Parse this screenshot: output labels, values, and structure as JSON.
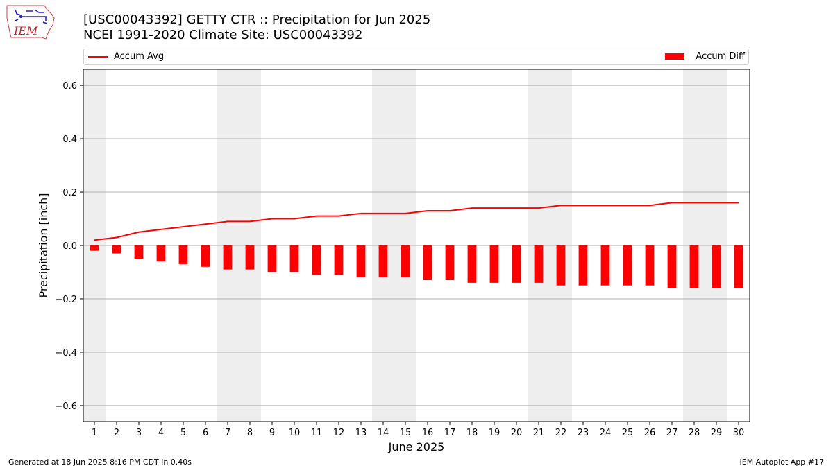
{
  "header": {
    "title_line1": "[USC00043392] GETTY CTR :: Precipitation for Jun 2025",
    "title_line2": "NCEI 1991-2020 Climate Site: USC00043392"
  },
  "logo": {
    "text": "IEM"
  },
  "footer": {
    "left": "Generated at 18 Jun 2025 8:16 PM CDT in 0.40s",
    "right": "IEM Autoplot App #17"
  },
  "legend": {
    "avg_label": "Accum Avg",
    "diff_label": "Accum Diff",
    "placement": "top, spanning full width"
  },
  "colors": {
    "series": "#ff0000",
    "weekend_shade": "#eeeeee",
    "grid": "#b0b0b0"
  },
  "chart_data": {
    "type": "bar",
    "xlabel": "June 2025",
    "ylabel": "Precipitation [inch]",
    "ylim": [
      -0.66,
      0.66
    ],
    "yticks": [
      -0.6,
      -0.4,
      -0.2,
      0.0,
      0.2,
      0.4,
      0.6
    ],
    "ytick_labels": [
      "−0.6",
      "−0.4",
      "−0.2",
      "0.0",
      "0.2",
      "0.4",
      "0.6"
    ],
    "xlim": [
      0.5,
      30.5
    ],
    "categories": [
      1,
      2,
      3,
      4,
      5,
      6,
      7,
      8,
      9,
      10,
      11,
      12,
      13,
      14,
      15,
      16,
      17,
      18,
      19,
      20,
      21,
      22,
      23,
      24,
      25,
      26,
      27,
      28,
      29,
      30
    ],
    "weekend_days": [
      1,
      7,
      8,
      14,
      15,
      21,
      22,
      28,
      29
    ],
    "grid": "horizontal",
    "series": [
      {
        "name": "Accum Avg",
        "type": "line",
        "values": [
          0.02,
          0.03,
          0.05,
          0.06,
          0.07,
          0.08,
          0.09,
          0.09,
          0.1,
          0.1,
          0.11,
          0.11,
          0.12,
          0.12,
          0.12,
          0.13,
          0.13,
          0.14,
          0.14,
          0.14,
          0.14,
          0.15,
          0.15,
          0.15,
          0.15,
          0.15,
          0.16,
          0.16,
          0.16,
          0.16
        ]
      },
      {
        "name": "Accum Diff",
        "type": "bar",
        "values": [
          -0.02,
          -0.03,
          -0.05,
          -0.06,
          -0.07,
          -0.08,
          -0.09,
          -0.09,
          -0.1,
          -0.1,
          -0.11,
          -0.11,
          -0.12,
          -0.12,
          -0.12,
          -0.13,
          -0.13,
          -0.14,
          -0.14,
          -0.14,
          -0.14,
          -0.15,
          -0.15,
          -0.15,
          -0.15,
          -0.15,
          -0.16,
          -0.16,
          -0.16,
          -0.16
        ]
      }
    ]
  }
}
